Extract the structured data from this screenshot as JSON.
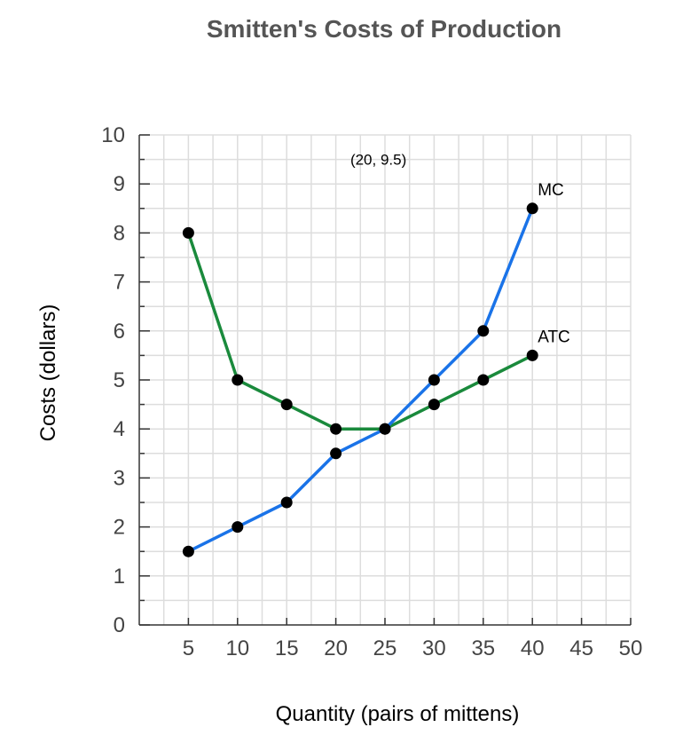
{
  "chart_data": {
    "type": "line",
    "title": "Smitten's Costs of Production",
    "xlabel": "Quantity (pairs of mittens)",
    "ylabel": "Costs (dollars)",
    "xlim": [
      0,
      50
    ],
    "ylim": [
      0,
      10
    ],
    "xticks": [
      5,
      10,
      15,
      20,
      25,
      30,
      35,
      40,
      45,
      50
    ],
    "yticks": [
      0,
      1,
      2,
      3,
      4,
      5,
      6,
      7,
      8,
      9,
      10
    ],
    "grid": true,
    "series": [
      {
        "name": "ATC",
        "color": "#1a8a3c",
        "x": [
          5,
          10,
          15,
          20,
          25,
          30,
          35,
          40
        ],
        "y": [
          8,
          5,
          4.5,
          4,
          4,
          4.5,
          5,
          5.5
        ]
      },
      {
        "name": "MC",
        "color": "#1a73e8",
        "x": [
          5,
          10,
          15,
          20,
          25,
          30,
          35,
          40
        ],
        "y": [
          1.5,
          2,
          2.5,
          3.5,
          4,
          5,
          6,
          8.5
        ]
      }
    ],
    "annotations": [
      {
        "text": "(20, 9.5)",
        "x": 20,
        "y": 9.5
      }
    ]
  }
}
